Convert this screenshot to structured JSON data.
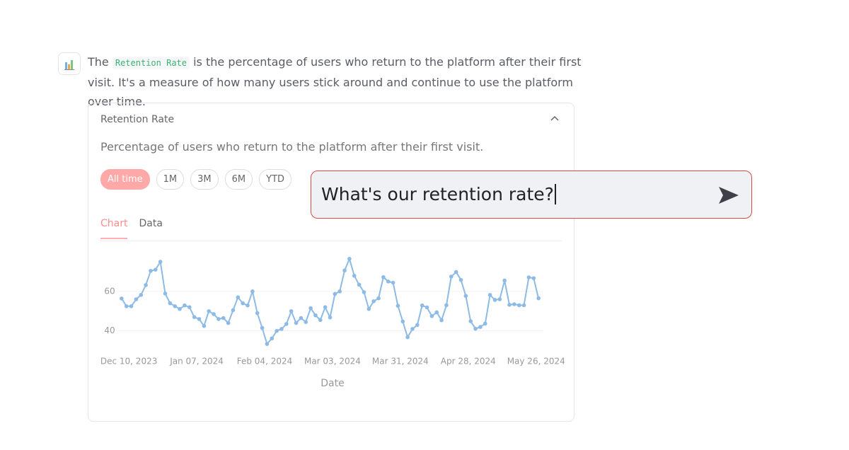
{
  "message": {
    "text_before": "The",
    "code": "Retention Rate",
    "text_after": "is the percentage of users who return to the platform after their first visit. It's a measure of how many users stick around and continue to use the platform over time."
  },
  "card": {
    "title": "Retention Rate",
    "description": "Percentage of users who return to the platform after their first visit.",
    "ranges": [
      "All time",
      "1M",
      "3M",
      "6M",
      "YTD"
    ],
    "tabs": [
      "Chart",
      "Data"
    ]
  },
  "chart_data": {
    "type": "line",
    "color": "#8dbbe6",
    "grid": true,
    "x_label": "Date",
    "x": [
      "2023-12-07",
      "2023-12-09",
      "2023-12-11",
      "2023-12-13",
      "2023-12-15",
      "2023-12-17",
      "2023-12-19",
      "2023-12-21",
      "2023-12-23",
      "2023-12-25",
      "2023-12-27",
      "2023-12-29",
      "2023-12-31",
      "2024-01-02",
      "2024-01-04",
      "2024-01-06",
      "2024-01-08",
      "2024-01-10",
      "2024-01-12",
      "2024-01-14",
      "2024-01-16",
      "2024-01-18",
      "2024-01-20",
      "2024-01-22",
      "2024-01-24",
      "2024-01-26",
      "2024-01-28",
      "2024-01-30",
      "2024-02-01",
      "2024-02-03",
      "2024-02-05",
      "2024-02-07",
      "2024-02-09",
      "2024-02-11",
      "2024-02-13",
      "2024-02-15",
      "2024-02-17",
      "2024-02-19",
      "2024-02-21",
      "2024-02-23",
      "2024-02-25",
      "2024-02-27",
      "2024-02-29",
      "2024-03-02",
      "2024-03-04",
      "2024-03-06",
      "2024-03-08",
      "2024-03-10",
      "2024-03-12",
      "2024-03-14",
      "2024-03-16",
      "2024-03-18",
      "2024-03-20",
      "2024-03-22",
      "2024-03-24",
      "2024-03-26",
      "2024-03-28",
      "2024-03-30",
      "2024-04-01",
      "2024-04-03",
      "2024-04-05",
      "2024-04-07",
      "2024-04-09",
      "2024-04-11",
      "2024-04-13",
      "2024-04-15",
      "2024-04-17",
      "2024-04-19",
      "2024-04-21",
      "2024-04-23",
      "2024-04-25",
      "2024-04-27",
      "2024-04-29",
      "2024-05-01",
      "2024-05-03",
      "2024-05-05",
      "2024-05-07",
      "2024-05-09",
      "2024-05-11",
      "2024-05-13",
      "2024-05-15",
      "2024-05-17",
      "2024-05-19",
      "2024-05-21",
      "2024-05-23",
      "2024-05-25",
      "2024-05-27"
    ],
    "values": [
      56.4,
      52.5,
      52.5,
      56,
      58.2,
      63.2,
      70.4,
      71,
      75,
      58.9,
      54,
      52.5,
      51.1,
      52.9,
      52,
      47,
      46,
      42.5,
      50,
      48.5,
      46,
      46.5,
      44,
      50.5,
      57,
      54,
      52.9,
      60,
      49,
      41.5,
      33.4,
      36.2,
      40,
      41,
      43.5,
      50,
      44,
      46.5,
      44.5,
      51.5,
      47.9,
      45.5,
      52,
      46.8,
      58.7,
      60,
      70.6,
      76.5,
      67.9,
      63.4,
      59.6,
      51.1,
      55,
      56.5,
      67.2,
      65,
      64.4,
      52.7,
      44.8,
      36.8,
      41,
      43,
      52.9,
      51.9,
      47.5,
      49.4,
      45.4,
      53,
      67.5,
      69.8,
      65.8,
      57.7,
      44.9,
      41.1,
      42,
      43.7,
      58.2,
      55.7,
      56,
      65.5,
      53.2,
      53.5,
      53,
      53,
      67.1,
      66.7,
      56.5
    ],
    "xlim": [
      "2023-12-05",
      "2024-05-29"
    ],
    "xticks": [
      {
        "value": "2023-12-10",
        "label": "Dec 10, 2023"
      },
      {
        "value": "2024-01-07",
        "label": "Jan 07, 2024"
      },
      {
        "value": "2024-02-04",
        "label": "Feb 04, 2024"
      },
      {
        "value": "2024-03-03",
        "label": "Mar 03, 2024"
      },
      {
        "value": "2024-03-31",
        "label": "Mar 31, 2024"
      },
      {
        "value": "2024-04-28",
        "label": "Apr 28, 2024"
      },
      {
        "value": "2024-05-26",
        "label": "May 26, 2024"
      }
    ],
    "ylim": [
      32,
      80
    ],
    "yticks": [
      40,
      60
    ]
  },
  "input": {
    "text": "What's our retention rate?"
  }
}
